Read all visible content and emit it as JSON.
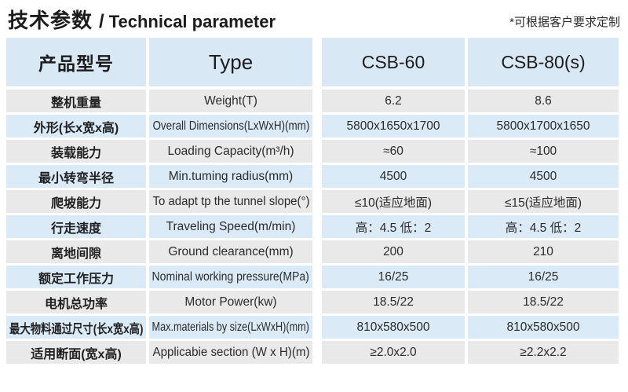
{
  "header": {
    "title_zh": "技术参数",
    "title_sep": "/",
    "title_en": "Technical parameter",
    "note": "*可根据客户要求定制"
  },
  "chart_data": {
    "type": "table",
    "title": "技术参数 / Technical parameter",
    "note": "*可根据客户要求定制",
    "columns": [
      "产品型号",
      "Type",
      "CSB-60",
      "CSB-80(s)"
    ],
    "rows": [
      [
        "整机重量",
        "Weight(T)",
        "6.2",
        "8.6"
      ],
      [
        "外形(长x宽x高)",
        "Overall Dimensions(LxWxH)(mm)",
        "5800x1650x1700",
        "5800x1700x1650"
      ],
      [
        "装载能力",
        "Loading Capacity(m³/h)",
        "≈60",
        "≈100"
      ],
      [
        "最小转弯半径",
        "Min.tuming radius(mm)",
        "4500",
        "4500"
      ],
      [
        "爬坡能力",
        "To adapt tp the tunnel slope(°)",
        "≤10(适应地面)",
        "≤15(适应地面)"
      ],
      [
        "行走速度",
        "Traveling Speed(m/min)",
        "高：4.5 低：2",
        "高：4.5 低：2"
      ],
      [
        "离地间隙",
        "Ground clearance(mm)",
        "200",
        "210"
      ],
      [
        "额定工作压力",
        "Nominal working pressure(MPa)",
        "16/25",
        "16/25"
      ],
      [
        "电机总功率",
        "Motor Power(kw)",
        "18.5/22",
        "18.5/22"
      ],
      [
        "最大物料通过尺寸(长x宽x高)",
        "Max.materials by size(LxWxH)(mm)",
        "810x580x500",
        "810x580x500"
      ],
      [
        "适用断面(宽x高)",
        "Applicabie section (W x H)(m)",
        "≥2.0x2.0",
        "≥2.2x2.2"
      ]
    ]
  },
  "colors": {
    "header_bg": "#d9e8f5",
    "row_gray": "#e9e9e9",
    "row_blue": "#daeaf7",
    "text_dark": "#1c1c1c"
  }
}
